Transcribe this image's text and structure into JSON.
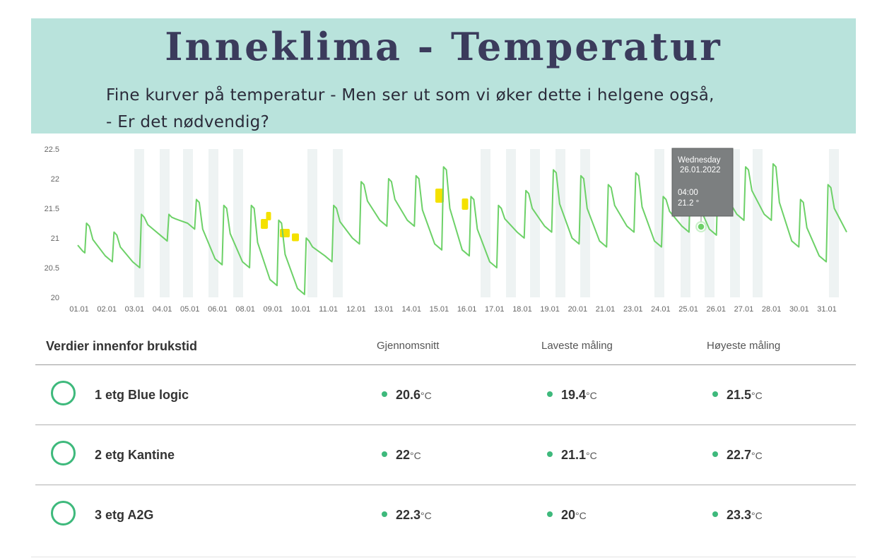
{
  "header": {
    "title": "Inneklima - Temperatur",
    "subtitle_line1": "Fine kurver på temperatur - Men ser ut som vi øker dette i helgene også,",
    "subtitle_line2": "- Er det nødvendig?"
  },
  "chart_data": {
    "type": "line",
    "ylim": [
      20,
      22.5
    ],
    "yticks": [
      "22.5",
      "22",
      "21.5",
      "21",
      "20.5",
      "20"
    ],
    "xticks": [
      "01.01",
      "02.01",
      "03.01",
      "04.01",
      "05.01",
      "06.01",
      "08.01",
      "09.01",
      "10.01",
      "11.01",
      "12.01",
      "13.01",
      "14.01",
      "15.01",
      "16.01",
      "17.01",
      "18.01",
      "19.01",
      "20.01",
      "21.01",
      "23.01",
      "24.01",
      "25.01",
      "26.01",
      "27.01",
      "28.01",
      "30.01",
      "31.01"
    ],
    "daily_peaks": [
      21.25,
      21.1,
      21.4,
      21.4,
      21.65,
      21.55,
      21.55,
      21.3,
      21.0,
      21.55,
      21.95,
      22.0,
      22.05,
      22.2,
      21.7,
      21.55,
      21.8,
      22.15,
      22.05,
      21.9,
      22.1,
      21.7,
      22.1,
      22.1,
      22.2,
      22.25,
      21.65,
      21.9
    ],
    "daily_lows": [
      20.75,
      20.6,
      20.5,
      20.95,
      21.15,
      20.55,
      20.5,
      20.2,
      20.05,
      20.6,
      20.9,
      21.2,
      21.2,
      20.8,
      20.7,
      20.5,
      21.0,
      21.1,
      20.9,
      20.85,
      21.1,
      20.85,
      21.1,
      21.05,
      21.3,
      21.3,
      20.85,
      20.6
    ],
    "weekend_shading": true,
    "grid": false,
    "color": "#6dd168",
    "highlight_color": "#f4e100",
    "tooltip": {
      "day": "Wednesday",
      "date": "26.01.2022",
      "time": "04:00",
      "value": "21.2 °"
    }
  },
  "table": {
    "header_label": "Verdier innenfor brukstid",
    "columns": [
      "Gjennomsnitt",
      "Laveste måling",
      "Høyeste måling"
    ],
    "unit": "°C",
    "rows": [
      {
        "name": "1 etg Blue logic",
        "avg": "20.6",
        "min": "19.4",
        "max": "21.5"
      },
      {
        "name": "2 etg Kantine",
        "avg": "22",
        "min": "21.1",
        "max": "22.7"
      },
      {
        "name": "3 etg A2G",
        "avg": "22.3",
        "min": "20",
        "max": "23.3"
      }
    ]
  }
}
